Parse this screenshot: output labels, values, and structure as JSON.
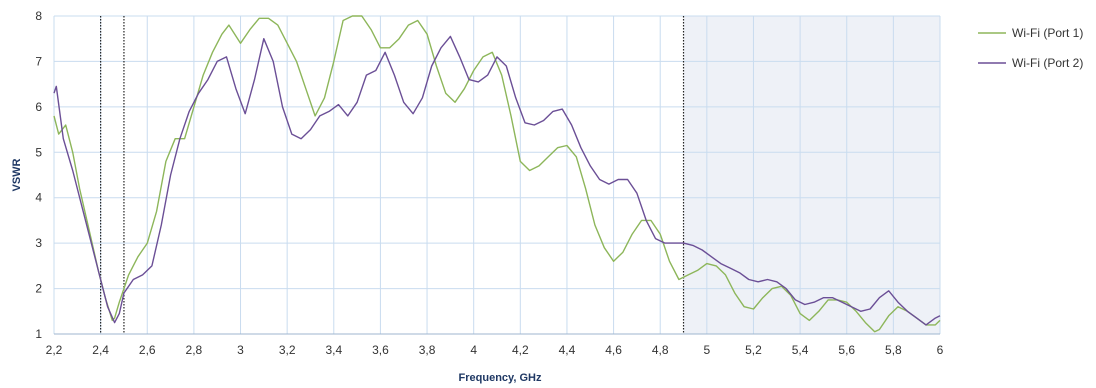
{
  "chart_data": {
    "type": "line",
    "title": "",
    "xlabel": "Frequency, GHz",
    "ylabel": "VSWR",
    "xlim": [
      2.2,
      6.0
    ],
    "ylim": [
      1,
      8
    ],
    "x_ticks": [
      2.2,
      2.4,
      2.6,
      2.8,
      3.0,
      3.2,
      3.4,
      3.6,
      3.8,
      4.0,
      4.2,
      4.4,
      4.6,
      4.8,
      5.0,
      5.2,
      5.4,
      5.6,
      5.8,
      6.0
    ],
    "x_tick_labels": [
      "2,2",
      "2,4",
      "2,6",
      "2,8",
      "3",
      "3,2",
      "3,4",
      "3,6",
      "3,8",
      "4",
      "4,2",
      "4,4",
      "4,6",
      "4,8",
      "5",
      "5,2",
      "5,4",
      "5,6",
      "5,8",
      "6"
    ],
    "y_ticks": [
      1,
      2,
      3,
      4,
      5,
      6,
      7,
      8
    ],
    "y_tick_labels": [
      "1",
      "2",
      "3",
      "4",
      "5",
      "6",
      "7",
      "8"
    ],
    "grid": true,
    "legend_position": "right",
    "band_markers": [
      2.4,
      2.5,
      4.9
    ],
    "shaded_region": [
      4.9,
      6.0
    ],
    "series": [
      {
        "name": "Wi-Fi (Port 1)",
        "color": "#8db65a",
        "x": [
          2.2,
          2.22,
          2.25,
          2.28,
          2.31,
          2.35,
          2.39,
          2.42,
          2.45,
          2.46,
          2.48,
          2.52,
          2.56,
          2.6,
          2.64,
          2.68,
          2.72,
          2.76,
          2.8,
          2.84,
          2.88,
          2.92,
          2.95,
          3.0,
          3.04,
          3.08,
          3.12,
          3.16,
          3.2,
          3.24,
          3.28,
          3.32,
          3.36,
          3.4,
          3.44,
          3.48,
          3.52,
          3.56,
          3.6,
          3.64,
          3.68,
          3.72,
          3.76,
          3.8,
          3.84,
          3.88,
          3.92,
          3.96,
          4.0,
          4.04,
          4.08,
          4.12,
          4.16,
          4.2,
          4.24,
          4.28,
          4.32,
          4.36,
          4.4,
          4.44,
          4.48,
          4.52,
          4.56,
          4.6,
          4.64,
          4.68,
          4.72,
          4.76,
          4.8,
          4.84,
          4.88,
          4.92,
          4.96,
          5.0,
          5.04,
          5.08,
          5.12,
          5.16,
          5.2,
          5.24,
          5.28,
          5.32,
          5.36,
          5.4,
          5.44,
          5.48,
          5.52,
          5.56,
          5.6,
          5.64,
          5.68,
          5.72,
          5.74,
          5.78,
          5.82,
          5.86,
          5.9,
          5.94,
          5.98,
          6.0
        ],
        "values": [
          5.8,
          5.4,
          5.6,
          5.0,
          4.2,
          3.3,
          2.4,
          1.8,
          1.3,
          1.35,
          1.7,
          2.3,
          2.7,
          3.0,
          3.7,
          4.8,
          5.3,
          5.3,
          6.0,
          6.7,
          7.2,
          7.6,
          7.8,
          7.4,
          7.7,
          7.95,
          7.95,
          7.8,
          7.4,
          7.0,
          6.4,
          5.8,
          6.2,
          7.0,
          7.9,
          8.0,
          8.0,
          7.7,
          7.3,
          7.3,
          7.5,
          7.8,
          7.9,
          7.6,
          6.9,
          6.3,
          6.1,
          6.4,
          6.8,
          7.1,
          7.2,
          6.7,
          5.8,
          4.8,
          4.6,
          4.7,
          4.9,
          5.1,
          5.15,
          4.9,
          4.2,
          3.4,
          2.9,
          2.6,
          2.8,
          3.2,
          3.5,
          3.5,
          3.2,
          2.6,
          2.2,
          2.3,
          2.4,
          2.55,
          2.5,
          2.3,
          1.9,
          1.6,
          1.55,
          1.8,
          2.0,
          2.05,
          1.85,
          1.45,
          1.3,
          1.5,
          1.75,
          1.75,
          1.7,
          1.5,
          1.25,
          1.05,
          1.1,
          1.4,
          1.6,
          1.5,
          1.35,
          1.2,
          1.2,
          1.3
        ]
      },
      {
        "name": "Wi-Fi (Port 2)",
        "color": "#6b4f96",
        "x": [
          2.2,
          2.21,
          2.24,
          2.28,
          2.32,
          2.36,
          2.4,
          2.43,
          2.46,
          2.48,
          2.5,
          2.54,
          2.58,
          2.62,
          2.66,
          2.7,
          2.74,
          2.78,
          2.82,
          2.86,
          2.9,
          2.94,
          2.98,
          3.02,
          3.06,
          3.1,
          3.14,
          3.18,
          3.22,
          3.26,
          3.3,
          3.34,
          3.38,
          3.42,
          3.46,
          3.5,
          3.54,
          3.58,
          3.62,
          3.66,
          3.7,
          3.74,
          3.78,
          3.82,
          3.86,
          3.9,
          3.94,
          3.98,
          4.02,
          4.06,
          4.1,
          4.14,
          4.18,
          4.22,
          4.26,
          4.3,
          4.34,
          4.38,
          4.42,
          4.46,
          4.5,
          4.54,
          4.58,
          4.62,
          4.66,
          4.7,
          4.74,
          4.78,
          4.82,
          4.86,
          4.9,
          4.94,
          4.98,
          5.02,
          5.06,
          5.1,
          5.14,
          5.18,
          5.22,
          5.26,
          5.3,
          5.34,
          5.38,
          5.42,
          5.46,
          5.5,
          5.54,
          5.58,
          5.62,
          5.66,
          5.7,
          5.74,
          5.78,
          5.82,
          5.86,
          5.9,
          5.94,
          5.98,
          6.0
        ],
        "values": [
          6.3,
          6.45,
          5.3,
          4.6,
          3.8,
          3.0,
          2.2,
          1.6,
          1.25,
          1.45,
          1.9,
          2.2,
          2.3,
          2.5,
          3.4,
          4.5,
          5.3,
          5.9,
          6.3,
          6.6,
          7.0,
          7.1,
          6.4,
          5.85,
          6.6,
          7.5,
          7.0,
          6.0,
          5.4,
          5.3,
          5.5,
          5.8,
          5.9,
          6.05,
          5.8,
          6.1,
          6.7,
          6.8,
          7.2,
          6.7,
          6.1,
          5.85,
          6.2,
          6.9,
          7.3,
          7.55,
          7.1,
          6.6,
          6.55,
          6.7,
          7.1,
          6.9,
          6.2,
          5.65,
          5.6,
          5.7,
          5.9,
          5.95,
          5.6,
          5.1,
          4.7,
          4.4,
          4.3,
          4.4,
          4.4,
          4.1,
          3.5,
          3.1,
          3.0,
          3.0,
          3.0,
          2.95,
          2.85,
          2.7,
          2.55,
          2.45,
          2.35,
          2.2,
          2.15,
          2.2,
          2.15,
          2.0,
          1.75,
          1.65,
          1.7,
          1.8,
          1.8,
          1.7,
          1.6,
          1.5,
          1.55,
          1.8,
          1.95,
          1.7,
          1.5,
          1.35,
          1.2,
          1.35,
          1.4
        ]
      }
    ]
  }
}
